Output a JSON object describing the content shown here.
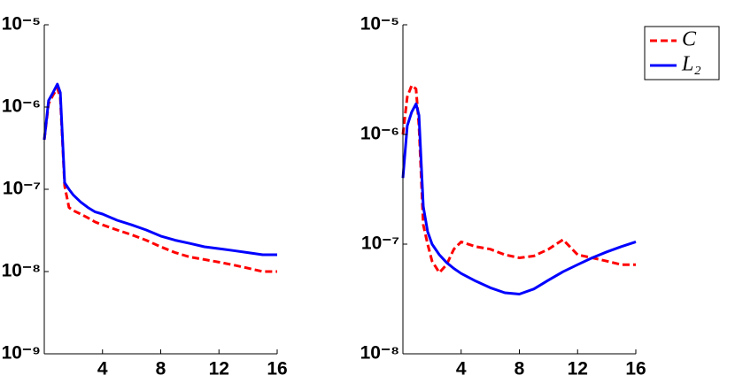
{
  "chart_data": [
    {
      "type": "line",
      "log_y": true,
      "x": [
        0,
        0.3,
        0.6,
        0.9,
        1.1,
        1.4,
        1.7,
        2,
        2.5,
        3,
        3.5,
        4,
        5,
        6,
        7,
        8,
        9,
        10,
        11,
        12,
        13,
        14,
        15,
        16
      ],
      "xlim": [
        0,
        16
      ],
      "xticks": [
        4,
        8,
        12,
        16
      ],
      "ylim": [
        1e-09,
        1e-05
      ],
      "yticks": [
        {
          "value": 1e-09,
          "label": "10⁻⁹"
        },
        {
          "value": 1e-08,
          "label": "10⁻⁸"
        },
        {
          "value": 1e-07,
          "label": "10⁻⁷"
        },
        {
          "value": 1e-06,
          "label": "10⁻⁶"
        },
        {
          "value": 1e-05,
          "label": "10⁻⁵"
        }
      ],
      "series": [
        {
          "color": "#ff0000",
          "dash": true,
          "values": [
            4e-07,
            1.1e-06,
            1.4e-06,
            1.7e-06,
            1.3e-06,
            1.1e-07,
            6e-08,
            5.5e-08,
            5e-08,
            4.5e-08,
            4e-08,
            3.7e-08,
            3.2e-08,
            2.8e-08,
            2.4e-08,
            2e-08,
            1.7e-08,
            1.5e-08,
            1.4e-08,
            1.3e-08,
            1.2e-08,
            1.1e-08,
            1e-08,
            1e-08
          ]
        },
        {
          "color": "#0000ff",
          "dash": false,
          "values": [
            4e-07,
            1.2e-06,
            1.5e-06,
            1.9e-06,
            1.5e-06,
            1.2e-07,
            1e-07,
            8.5e-08,
            7e-08,
            6e-08,
            5.3e-08,
            5e-08,
            4.2e-08,
            3.7e-08,
            3.2e-08,
            2.7e-08,
            2.4e-08,
            2.2e-08,
            2e-08,
            1.9e-08,
            1.8e-08,
            1.7e-08,
            1.6e-08,
            1.6e-08
          ]
        }
      ]
    },
    {
      "type": "line",
      "log_y": true,
      "legend": "upper right",
      "x": [
        0,
        0.3,
        0.6,
        0.9,
        1.1,
        1.4,
        1.7,
        2,
        2.5,
        3,
        3.5,
        4,
        5,
        6,
        7,
        8,
        9,
        10,
        11,
        12,
        13,
        14,
        15,
        16
      ],
      "xlim": [
        0,
        16
      ],
      "xticks": [
        4,
        8,
        12,
        16
      ],
      "ylim": [
        1e-08,
        1e-05
      ],
      "yticks": [
        {
          "value": 1e-08,
          "label": "10⁻⁸"
        },
        {
          "value": 1e-07,
          "label": "10⁻⁷"
        },
        {
          "value": 1e-06,
          "label": "10⁻⁶"
        },
        {
          "value": 1e-05,
          "label": "10⁻⁵"
        }
      ],
      "series": [
        {
          "name": "C",
          "color": "#ff0000",
          "dash": true,
          "values": [
            1e-06,
            2.2e-06,
            2.8e-06,
            2.6e-06,
            1.2e-06,
            1.5e-07,
            1e-07,
            7e-08,
            5.5e-08,
            6.5e-08,
            9e-08,
            1.05e-07,
            9.5e-08,
            9e-08,
            8e-08,
            7.5e-08,
            7.8e-08,
            9e-08,
            1.1e-07,
            8e-08,
            7.5e-08,
            7e-08,
            6.5e-08,
            6.5e-08
          ]
        },
        {
          "name": "L₂",
          "color": "#0000ff",
          "dash": false,
          "values": [
            4e-07,
            1.2e-06,
            1.6e-06,
            1.9e-06,
            1.5e-06,
            2.2e-07,
            1.3e-07,
            1e-07,
            8e-08,
            6.8e-08,
            6e-08,
            5.4e-08,
            4.6e-08,
            4e-08,
            3.6e-08,
            3.5e-08,
            3.9e-08,
            4.7e-08,
            5.6e-08,
            6.5e-08,
            7.5e-08,
            8.5e-08,
            9.5e-08,
            1.05e-07
          ]
        }
      ]
    }
  ]
}
